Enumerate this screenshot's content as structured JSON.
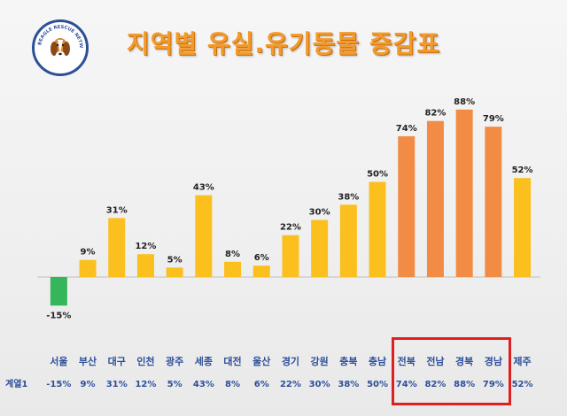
{
  "chart_data": {
    "type": "bar",
    "title": "지역별 유실.유기동물 증감표",
    "series": [
      {
        "name": "계열1",
        "values": [
          -15,
          9,
          31,
          12,
          5,
          43,
          8,
          6,
          22,
          30,
          38,
          50,
          74,
          82,
          88,
          79,
          52
        ]
      }
    ],
    "categories": [
      "서울",
      "부산",
      "대구",
      "인천",
      "광주",
      "세종",
      "대전",
      "울산",
      "경기",
      "강원",
      "충북",
      "충남",
      "전북",
      "전남",
      "경북",
      "경남",
      "제주"
    ],
    "value_labels": [
      "-15%",
      "9%",
      "31%",
      "12%",
      "5%",
      "43%",
      "8%",
      "6%",
      "22%",
      "30%",
      "38%",
      "50%",
      "74%",
      "82%",
      "88%",
      "79%",
      "52%"
    ],
    "highlighted_categories": [
      "전북",
      "전남",
      "경북",
      "경남"
    ],
    "ylim": [
      -20,
      95
    ],
    "grid": false,
    "legend": "data table below chart"
  },
  "colors": {
    "positive": "#fbbf1e",
    "negative": "#36b65a",
    "highlight": "#f28c45",
    "highlight_box": "#e02020",
    "title": "#f39a2a",
    "label_blue": "#2d4f9a"
  },
  "logo": {
    "icon": "beagle-dog-icon",
    "ring_text": "BEAGLE RESCUE NETWORK"
  }
}
